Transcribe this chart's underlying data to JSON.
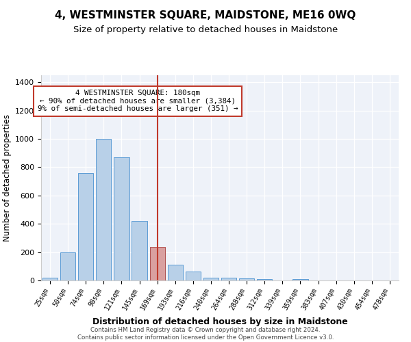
{
  "title": "4, WESTMINSTER SQUARE, MAIDSTONE, ME16 0WQ",
  "subtitle": "Size of property relative to detached houses in Maidstone",
  "xlabel": "Distribution of detached houses by size in Maidstone",
  "ylabel": "Number of detached properties",
  "categories": [
    "25sqm",
    "50sqm",
    "74sqm",
    "98sqm",
    "121sqm",
    "145sqm",
    "169sqm",
    "193sqm",
    "216sqm",
    "240sqm",
    "264sqm",
    "288sqm",
    "312sqm",
    "339sqm",
    "359sqm",
    "383sqm",
    "407sqm",
    "430sqm",
    "454sqm",
    "478sqm"
  ],
  "values": [
    20,
    200,
    760,
    1000,
    870,
    420,
    235,
    110,
    65,
    20,
    20,
    15,
    10,
    0,
    8,
    0,
    0,
    0,
    0,
    0
  ],
  "bar_color": "#b8d0e8",
  "bar_edge_color": "#5b9bd5",
  "highlight_index": 6,
  "highlight_bar_color": "#d9a0a0",
  "highlight_bar_edge": "#b05050",
  "marker_color": "#c0392b",
  "annotation_text": "4 WESTMINSTER SQUARE: 180sqm\n← 90% of detached houses are smaller (3,384)\n9% of semi-detached houses are larger (351) →",
  "annotation_box_color": "#ffffff",
  "annotation_box_edge_color": "#c0392b",
  "ylim": [
    0,
    1450
  ],
  "yticks": [
    0,
    200,
    400,
    600,
    800,
    1000,
    1200,
    1400
  ],
  "footer1": "Contains HM Land Registry data © Crown copyright and database right 2024.",
  "footer2": "Contains public sector information licensed under the Open Government Licence v3.0.",
  "bg_color": "#eef2f9",
  "title_fontsize": 11,
  "subtitle_fontsize": 9.5,
  "xlabel_fontsize": 9,
  "ylabel_fontsize": 8.5
}
